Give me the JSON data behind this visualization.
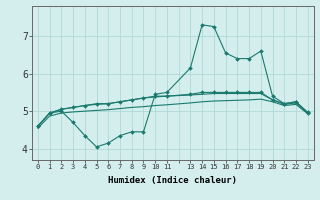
{
  "x_values": [
    0,
    1,
    2,
    3,
    4,
    5,
    6,
    7,
    8,
    9,
    10,
    11,
    13,
    14,
    15,
    16,
    17,
    18,
    19,
    20,
    21,
    22,
    23
  ],
  "line1_y": [
    4.6,
    4.95,
    5.0,
    4.7,
    4.35,
    4.05,
    4.15,
    4.35,
    4.45,
    4.45,
    5.45,
    5.5,
    6.15,
    7.3,
    7.25,
    6.55,
    6.4,
    6.4,
    6.6,
    5.4,
    5.2,
    5.25,
    4.95
  ],
  "line2_y": [
    4.6,
    4.95,
    5.05,
    5.1,
    5.15,
    5.2,
    5.2,
    5.25,
    5.3,
    5.35,
    5.4,
    5.4,
    5.45,
    5.5,
    5.5,
    5.5,
    5.5,
    5.5,
    5.5,
    5.3,
    5.2,
    5.25,
    4.97
  ],
  "line3_y": [
    4.6,
    4.95,
    5.05,
    5.1,
    5.15,
    5.18,
    5.2,
    5.25,
    5.3,
    5.35,
    5.38,
    5.4,
    5.43,
    5.45,
    5.47,
    5.47,
    5.47,
    5.47,
    5.47,
    5.3,
    5.18,
    5.22,
    4.95
  ],
  "line4_y": [
    4.55,
    4.87,
    4.95,
    4.98,
    5.0,
    5.02,
    5.04,
    5.07,
    5.1,
    5.12,
    5.15,
    5.17,
    5.22,
    5.25,
    5.27,
    5.28,
    5.29,
    5.3,
    5.32,
    5.25,
    5.15,
    5.18,
    4.93
  ],
  "line_color": "#1a7a6e",
  "background_color": "#d4eeee",
  "grid_color": "#b0d8d8",
  "xlabel": "Humidex (Indice chaleur)",
  "x_tick_labels": [
    "0",
    "1",
    "2",
    "3",
    "4",
    "5",
    "6",
    "7",
    "8",
    "9",
    "10",
    "11",
    "",
    "13",
    "14",
    "15",
    "16",
    "17",
    "18",
    "19",
    "20",
    "21",
    "22",
    "23"
  ],
  "ylim": [
    3.7,
    7.8
  ],
  "yticks": [
    4,
    5,
    6,
    7
  ]
}
